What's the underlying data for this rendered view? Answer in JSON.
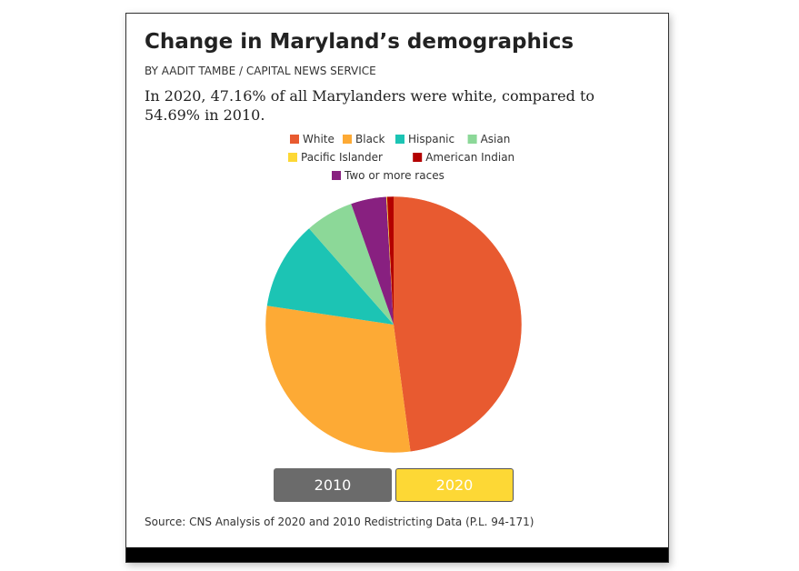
{
  "title": "Change in Maryland’s demographics",
  "byline": "BY AADIT TAMBE / CAPITAL NEWS SERVICE",
  "subtitle": "In 2020, 47.16% of all Marylanders were white, compared to 54.69% in 2010.",
  "buttons": {
    "year_2010": "2010",
    "year_2020": "2020",
    "selected": "2020"
  },
  "source": "Source: CNS Analysis of 2020 and 2010 Redistricting Data (P.L. 94-171)",
  "colors": {
    "button_2010": "#6b6b6b",
    "button_2020": "#fdd835"
  },
  "chart_data": {
    "type": "pie",
    "title": "",
    "categories": [
      "White",
      "Black",
      "Hispanic",
      "Asian",
      "Pacific Islander",
      "American Indian",
      "Two or more races"
    ],
    "values": [
      47.16,
      29.0,
      11.0,
      6.0,
      0.1,
      0.8,
      4.4
    ],
    "colors": [
      "#e85a30",
      "#fdaa35",
      "#1cc4b4",
      "#8cd898",
      "#fdd835",
      "#b30000",
      "#882080"
    ],
    "extra_slice_colors": [
      "#1070b0"
    ],
    "legend_position": "top"
  }
}
